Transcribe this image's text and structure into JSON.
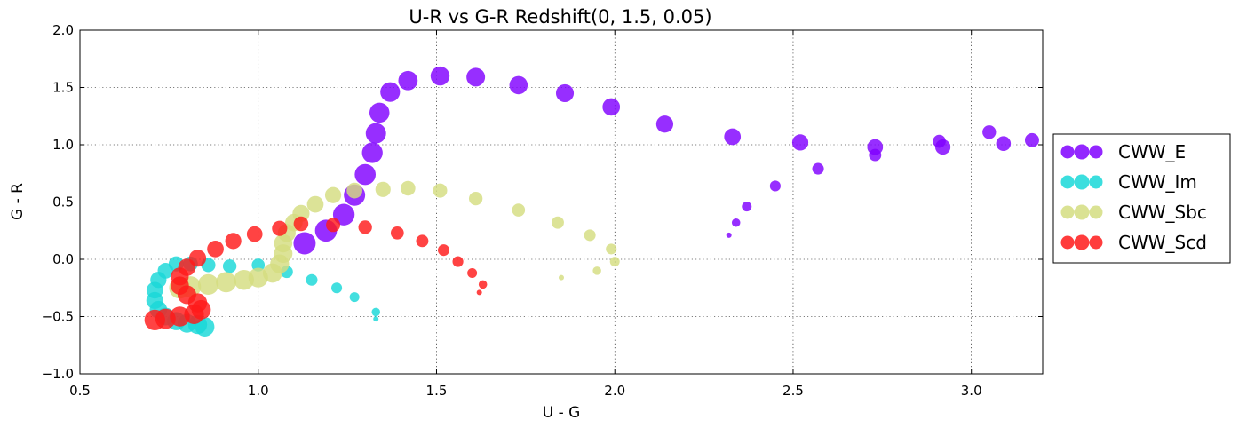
{
  "chart_data": {
    "type": "scatter",
    "title": "U-R vs G-R    Redshift(0, 1.5, 0.05)",
    "xlabel": "U - G",
    "ylabel": "G - R",
    "xlim": [
      0.5,
      3.2
    ],
    "ylim": [
      -1.0,
      2.0
    ],
    "xticks": [
      0.5,
      1.0,
      1.5,
      2.0,
      2.5,
      3.0
    ],
    "xtick_labels": [
      "0.5",
      "1.0",
      "1.5",
      "2.0",
      "2.5",
      "3.0"
    ],
    "yticks": [
      -1.0,
      -0.5,
      0.0,
      0.5,
      1.0,
      1.5,
      2.0
    ],
    "ytick_labels": [
      "−1.0",
      "−0.5",
      "0.0",
      "0.5",
      "1.0",
      "1.5",
      "2.0"
    ],
    "grid": true,
    "legend_position": "right-outside",
    "marker_size_encoding": "redshift",
    "series": [
      {
        "name": "CWW_E",
        "color": "#8000ff",
        "points": [
          {
            "x": 2.32,
            "y": 0.21,
            "z": 0.0
          },
          {
            "x": 2.34,
            "y": 0.32,
            "z": 0.05
          },
          {
            "x": 2.37,
            "y": 0.46,
            "z": 0.1
          },
          {
            "x": 2.45,
            "y": 0.64,
            "z": 0.15
          },
          {
            "x": 2.57,
            "y": 0.79,
            "z": 0.2
          },
          {
            "x": 2.73,
            "y": 0.91,
            "z": 0.25
          },
          {
            "x": 2.91,
            "y": 1.03,
            "z": 0.3
          },
          {
            "x": 3.05,
            "y": 1.11,
            "z": 0.35
          },
          {
            "x": 3.17,
            "y": 1.04,
            "z": 0.4
          },
          {
            "x": 3.09,
            "y": 1.01,
            "z": 0.45
          },
          {
            "x": 2.92,
            "y": 0.98,
            "z": 0.5
          },
          {
            "x": 2.73,
            "y": 0.98,
            "z": 0.55
          },
          {
            "x": 2.52,
            "y": 1.02,
            "z": 0.6
          },
          {
            "x": 2.33,
            "y": 1.07,
            "z": 0.65
          },
          {
            "x": 2.14,
            "y": 1.18,
            "z": 0.7
          },
          {
            "x": 1.99,
            "y": 1.33,
            "z": 0.75
          },
          {
            "x": 1.86,
            "y": 1.45,
            "z": 0.8
          },
          {
            "x": 1.73,
            "y": 1.52,
            "z": 0.85
          },
          {
            "x": 1.61,
            "y": 1.59,
            "z": 0.9
          },
          {
            "x": 1.51,
            "y": 1.6,
            "z": 0.95
          },
          {
            "x": 1.42,
            "y": 1.56,
            "z": 1.0
          },
          {
            "x": 1.37,
            "y": 1.46,
            "z": 1.05
          },
          {
            "x": 1.34,
            "y": 1.28,
            "z": 1.1
          },
          {
            "x": 1.33,
            "y": 1.1,
            "z": 1.15
          },
          {
            "x": 1.32,
            "y": 0.93,
            "z": 1.2
          },
          {
            "x": 1.3,
            "y": 0.74,
            "z": 1.25
          },
          {
            "x": 1.27,
            "y": 0.56,
            "z": 1.3
          },
          {
            "x": 1.24,
            "y": 0.39,
            "z": 1.35
          },
          {
            "x": 1.19,
            "y": 0.25,
            "z": 1.4
          },
          {
            "x": 1.13,
            "y": 0.14,
            "z": 1.45
          }
        ]
      },
      {
        "name": "CWW_Im",
        "color": "#19d8d8",
        "points": [
          {
            "x": 1.33,
            "y": -0.52,
            "z": 0.0
          },
          {
            "x": 1.33,
            "y": -0.46,
            "z": 0.05
          },
          {
            "x": 1.27,
            "y": -0.33,
            "z": 0.1
          },
          {
            "x": 1.22,
            "y": -0.25,
            "z": 0.15
          },
          {
            "x": 1.15,
            "y": -0.18,
            "z": 0.2
          },
          {
            "x": 1.08,
            "y": -0.11,
            "z": 0.25
          },
          {
            "x": 1.0,
            "y": -0.05,
            "z": 0.3
          },
          {
            "x": 0.92,
            "y": -0.06,
            "z": 0.35
          },
          {
            "x": 0.86,
            "y": -0.05,
            "z": 0.4
          },
          {
            "x": 0.81,
            "y": -0.04,
            "z": 0.45
          },
          {
            "x": 0.77,
            "y": -0.04,
            "z": 0.5
          },
          {
            "x": 0.74,
            "y": -0.1,
            "z": 0.55
          },
          {
            "x": 0.72,
            "y": -0.18,
            "z": 0.6
          },
          {
            "x": 0.71,
            "y": -0.27,
            "z": 0.65
          },
          {
            "x": 0.71,
            "y": -0.36,
            "z": 0.7
          },
          {
            "x": 0.72,
            "y": -0.44,
            "z": 0.75
          },
          {
            "x": 0.74,
            "y": -0.5,
            "z": 0.8
          },
          {
            "x": 0.77,
            "y": -0.54,
            "z": 0.85
          },
          {
            "x": 0.8,
            "y": -0.56,
            "z": 0.9
          },
          {
            "x": 0.83,
            "y": -0.57,
            "z": 0.95
          },
          {
            "x": 0.85,
            "y": -0.59,
            "z": 1.0
          }
        ]
      },
      {
        "name": "CWW_Sbc",
        "color": "#d4dd80",
        "points": [
          {
            "x": 1.85,
            "y": -0.16,
            "z": 0.0
          },
          {
            "x": 1.95,
            "y": -0.1,
            "z": 0.05
          },
          {
            "x": 2.0,
            "y": -0.02,
            "z": 0.1
          },
          {
            "x": 1.99,
            "y": 0.09,
            "z": 0.15
          },
          {
            "x": 1.93,
            "y": 0.21,
            "z": 0.2
          },
          {
            "x": 1.84,
            "y": 0.32,
            "z": 0.25
          },
          {
            "x": 1.73,
            "y": 0.43,
            "z": 0.3
          },
          {
            "x": 1.61,
            "y": 0.53,
            "z": 0.35
          },
          {
            "x": 1.51,
            "y": 0.6,
            "z": 0.4
          },
          {
            "x": 1.42,
            "y": 0.62,
            "z": 0.45
          },
          {
            "x": 1.35,
            "y": 0.61,
            "z": 0.5
          },
          {
            "x": 1.27,
            "y": 0.6,
            "z": 0.55
          },
          {
            "x": 1.21,
            "y": 0.56,
            "z": 0.6
          },
          {
            "x": 1.16,
            "y": 0.48,
            "z": 0.65
          },
          {
            "x": 1.12,
            "y": 0.4,
            "z": 0.7
          },
          {
            "x": 1.1,
            "y": 0.32,
            "z": 0.75
          },
          {
            "x": 1.08,
            "y": 0.23,
            "z": 0.8
          },
          {
            "x": 1.07,
            "y": 0.14,
            "z": 0.85
          },
          {
            "x": 1.07,
            "y": 0.05,
            "z": 0.9
          },
          {
            "x": 1.06,
            "y": -0.04,
            "z": 0.95
          },
          {
            "x": 1.04,
            "y": -0.12,
            "z": 1.0
          },
          {
            "x": 1.0,
            "y": -0.16,
            "z": 1.05
          },
          {
            "x": 0.96,
            "y": -0.18,
            "z": 1.1
          },
          {
            "x": 0.91,
            "y": -0.2,
            "z": 1.15
          },
          {
            "x": 0.86,
            "y": -0.22,
            "z": 1.2
          },
          {
            "x": 0.81,
            "y": -0.24,
            "z": 1.25
          },
          {
            "x": 0.78,
            "y": -0.25,
            "z": 1.3
          }
        ]
      },
      {
        "name": "CWW_Scd",
        "color": "#ff1a1a",
        "points": [
          {
            "x": 1.62,
            "y": -0.29,
            "z": 0.0
          },
          {
            "x": 1.63,
            "y": -0.22,
            "z": 0.05
          },
          {
            "x": 1.6,
            "y": -0.12,
            "z": 0.1
          },
          {
            "x": 1.56,
            "y": -0.02,
            "z": 0.15
          },
          {
            "x": 1.52,
            "y": 0.08,
            "z": 0.2
          },
          {
            "x": 1.46,
            "y": 0.16,
            "z": 0.25
          },
          {
            "x": 1.39,
            "y": 0.23,
            "z": 0.3
          },
          {
            "x": 1.3,
            "y": 0.28,
            "z": 0.35
          },
          {
            "x": 1.21,
            "y": 0.3,
            "z": 0.4
          },
          {
            "x": 1.12,
            "y": 0.31,
            "z": 0.45
          },
          {
            "x": 1.06,
            "y": 0.27,
            "z": 0.5
          },
          {
            "x": 0.99,
            "y": 0.22,
            "z": 0.55
          },
          {
            "x": 0.93,
            "y": 0.16,
            "z": 0.6
          },
          {
            "x": 0.88,
            "y": 0.09,
            "z": 0.65
          },
          {
            "x": 0.83,
            "y": 0.01,
            "z": 0.7
          },
          {
            "x": 0.8,
            "y": -0.07,
            "z": 0.75
          },
          {
            "x": 0.78,
            "y": -0.15,
            "z": 0.8
          },
          {
            "x": 0.78,
            "y": -0.23,
            "z": 0.85
          },
          {
            "x": 0.8,
            "y": -0.31,
            "z": 0.9
          },
          {
            "x": 0.83,
            "y": -0.38,
            "z": 0.95
          },
          {
            "x": 0.84,
            "y": -0.44,
            "z": 1.0
          },
          {
            "x": 0.82,
            "y": -0.48,
            "z": 1.05
          },
          {
            "x": 0.78,
            "y": -0.5,
            "z": 1.1
          },
          {
            "x": 0.74,
            "y": -0.52,
            "z": 1.15
          },
          {
            "x": 0.71,
            "y": -0.53,
            "z": 1.2
          }
        ]
      }
    ]
  }
}
